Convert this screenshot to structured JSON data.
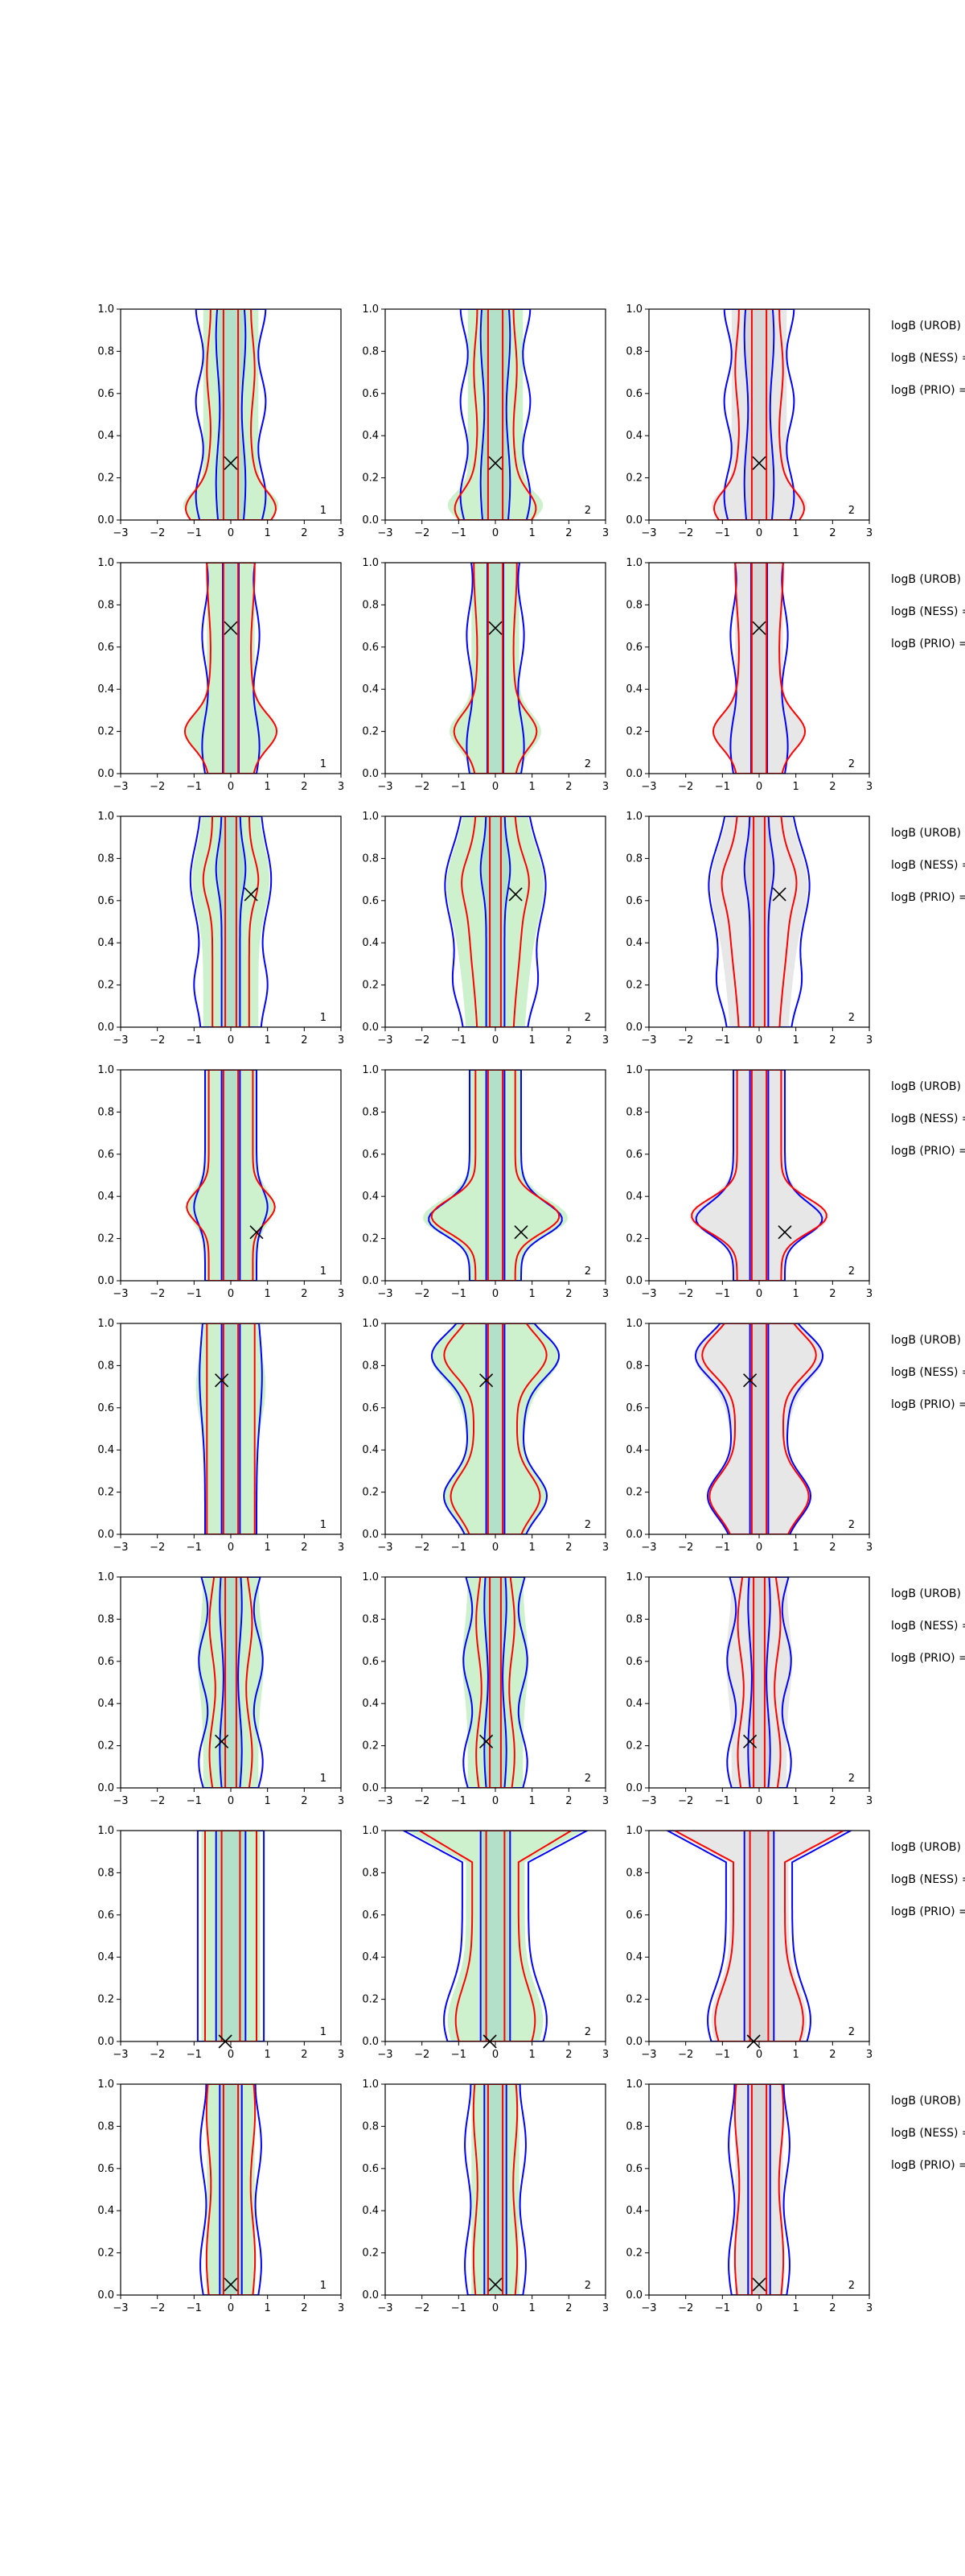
{
  "chart_data": {
    "type": "contour-grid",
    "rows": 8,
    "cols": 3,
    "xlim": [
      -3,
      3
    ],
    "ylim": [
      0,
      1
    ],
    "xticks": [
      -3,
      -2,
      -1,
      0,
      1,
      2,
      3
    ],
    "yticks": [
      "0.0",
      "0.2",
      "0.4",
      "0.6",
      "0.8",
      "1.0"
    ],
    "grid": false,
    "colors": {
      "blue_contour": "#0000ff",
      "red_contour": "#ff0000",
      "green_fill": "#c8f0c8",
      "gray_fill": "#e4e4e4",
      "marker": "#000000"
    },
    "corner_labels": [
      "1",
      "2",
      "2"
    ],
    "side_labels": [
      "logB (UROB) =",
      "logB (NESS) =",
      "logB (PRIO) ="
    ],
    "markers": [
      {
        "x": 0.0,
        "y": 0.27
      },
      {
        "x": 0.0,
        "y": 0.69
      },
      {
        "x": 0.55,
        "y": 0.63
      },
      {
        "x": 0.7,
        "y": 0.23
      },
      {
        "x": -0.25,
        "y": 0.73
      },
      {
        "x": -0.25,
        "y": 0.22
      },
      {
        "x": -0.15,
        "y": 0.0
      },
      {
        "x": 0.0,
        "y": 0.05
      }
    ]
  }
}
